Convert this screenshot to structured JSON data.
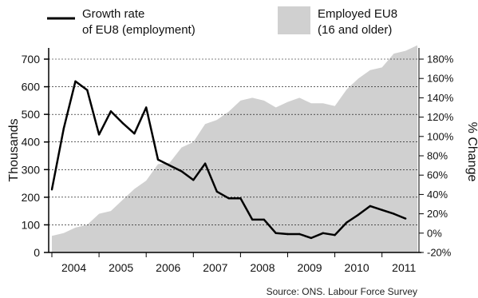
{
  "chart_data": {
    "type": "line",
    "x": [
      "2003-Q4",
      "2004-Q1",
      "2004-Q2",
      "2004-Q3",
      "2004-Q4",
      "2005-Q1",
      "2005-Q2",
      "2005-Q3",
      "2005-Q4",
      "2006-Q1",
      "2006-Q2",
      "2006-Q3",
      "2006-Q4",
      "2007-Q1",
      "2007-Q2",
      "2007-Q3",
      "2007-Q4",
      "2008-Q1",
      "2008-Q2",
      "2008-Q3",
      "2008-Q4",
      "2009-Q1",
      "2009-Q2",
      "2009-Q3",
      "2009-Q4",
      "2010-Q1",
      "2010-Q2",
      "2010-Q3",
      "2010-Q4",
      "2011-Q1",
      "2011-Q2",
      "2011-Q3"
    ],
    "x_tick_labels": [
      "2004",
      "2005",
      "2006",
      "2007",
      "2008",
      "2009",
      "2010",
      "2011"
    ],
    "series": [
      {
        "name": "Growth rate of EU8 (employment)",
        "axis": "right",
        "style": "line",
        "color": "#000000",
        "values": [
          45,
          108,
          157,
          148,
          102,
          126,
          114,
          103,
          130,
          76,
          70,
          64,
          55,
          72,
          43,
          36,
          36,
          14,
          14,
          0,
          -1,
          -1,
          -5,
          0,
          -2,
          11,
          19,
          28,
          24,
          20,
          15,
          null
        ]
      },
      {
        "name": "Employed EU8 (16 and older)",
        "axis": "left",
        "style": "area",
        "color": "#d0d0d0",
        "values": [
          60,
          70,
          90,
          100,
          140,
          150,
          190,
          230,
          260,
          320,
          325,
          380,
          400,
          465,
          480,
          510,
          550,
          560,
          550,
          525,
          545,
          560,
          540,
          540,
          530,
          590,
          630,
          660,
          670,
          720,
          730,
          750
        ]
      }
    ],
    "legend": [
      {
        "line1": "Growth rate",
        "line2": "of EU8 (employment)"
      },
      {
        "line1": "Employed EU8",
        "line2": "(16 and older)"
      }
    ],
    "ylabel": "Thousands",
    "ylabel_right": "% Change",
    "ylim": [
      0,
      700
    ],
    "ylim_right": [
      -20,
      180
    ],
    "y_ticks": [
      "0",
      "100",
      "200",
      "300",
      "400",
      "500",
      "600",
      "700"
    ],
    "y_ticks_right": [
      "-20%",
      "0%",
      "20%",
      "40%",
      "60%",
      "80%",
      "100%",
      "120%",
      "140%",
      "160%",
      "180%"
    ],
    "legend_placement": "top",
    "grid": "horizontal dashed",
    "source": "Source: ONS. Labour Force Survey"
  }
}
